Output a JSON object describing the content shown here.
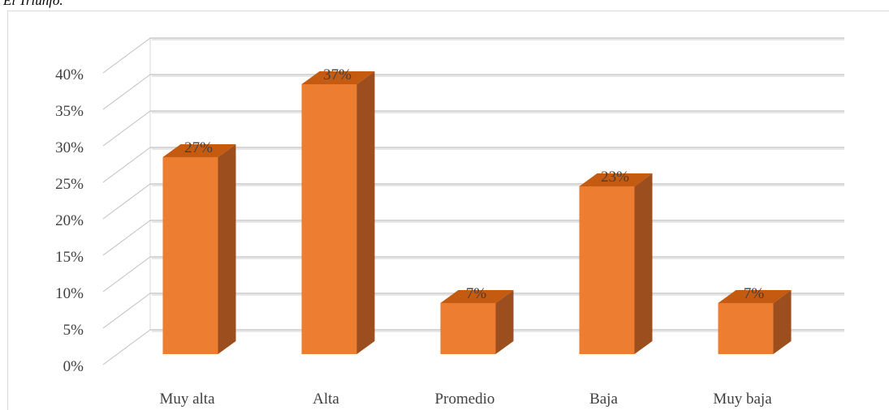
{
  "caption": "El Triunfo.",
  "colors": {
    "bar_front": "#ed7d31",
    "bar_top": "#c55a11",
    "bar_side": "#9c4e1e",
    "grid": "#bfbfbf",
    "grid_shadow": "#7f7f7f",
    "text": "#404040"
  },
  "chart_data": {
    "type": "bar",
    "title": "",
    "xlabel": "",
    "ylabel": "",
    "categories": [
      "Muy alta",
      "Alta",
      "Promedio",
      "Baja",
      "Muy baja"
    ],
    "values": [
      27,
      37,
      7,
      23,
      7
    ],
    "data_labels": [
      "27%",
      "37%",
      "7%",
      "23%",
      "7%"
    ],
    "ylim": [
      0,
      40
    ],
    "y_ticks": [
      0,
      5,
      10,
      15,
      20,
      25,
      30,
      35,
      40
    ],
    "y_tick_labels": [
      "0%",
      "5%",
      "10%",
      "15%",
      "20%",
      "25%",
      "30%",
      "35%",
      "40%"
    ],
    "grid": true,
    "legend": "none",
    "style": "3d-column"
  }
}
